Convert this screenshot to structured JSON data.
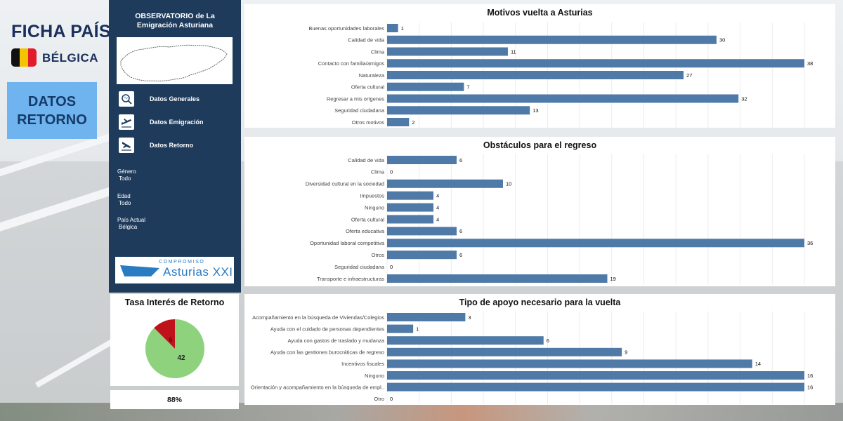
{
  "header": {
    "title": "FICHA PAÍS",
    "country": "BÉLGICA",
    "section_line1": "DATOS",
    "section_line2": "RETORNO"
  },
  "nav": {
    "observatory_line1": "OBSERVATORIO de La",
    "observatory_line2": "Emigración Asturiana",
    "items": [
      {
        "label": "Datos Generales",
        "icon": "search-map-icon"
      },
      {
        "label": "Datos Emigración",
        "icon": "plane-departure-icon"
      },
      {
        "label": "Datos Retorno",
        "icon": "plane-arrival-icon"
      }
    ],
    "filters": [
      {
        "label": "Género",
        "value": "Todo"
      },
      {
        "label": "Edad",
        "value": "Todo"
      },
      {
        "label": "País Actual",
        "value": "Bélgica"
      }
    ],
    "logo_top": "COMPROMISO",
    "logo_main": "Asturias XXI"
  },
  "rate": {
    "title": "Tasa Interés de Retorno",
    "yes_value": 42,
    "no_value": 6,
    "percent_label": "88%",
    "colors": {
      "yes": "#8fd27e",
      "no": "#c0121b"
    }
  },
  "chart_data": [
    {
      "type": "bar",
      "orientation": "horizontal",
      "title": "Motivos vuelta a Asturias",
      "categories": [
        "Buenas oportunidades laborales",
        "Calidad de vida",
        "Clima",
        "Contacto con familia/amigos",
        "Naturaleza",
        "Oferta cultural",
        "Regresar a mis orígenes",
        "Seguridad ciudadana",
        "Otros motivos"
      ],
      "values": [
        1,
        30,
        11,
        38,
        27,
        7,
        32,
        13,
        2
      ],
      "xlim": [
        0,
        38
      ],
      "grid": true,
      "color": "#4f79a7"
    },
    {
      "type": "bar",
      "orientation": "horizontal",
      "title": "Obstáculos para el regreso",
      "categories": [
        "Calidad de vida",
        "Clima",
        "Diversidad cultural en la sociedad",
        "Impuestos",
        "Ninguno",
        "Oferta cultural",
        "Oferta educativa",
        "Oportunidad laboral competitiva",
        "Otros",
        "Seguridad ciudadana",
        "Transporte e infraestructuras"
      ],
      "values": [
        6,
        0,
        10,
        4,
        4,
        4,
        6,
        36,
        6,
        0,
        19
      ],
      "xlim": [
        0,
        36
      ],
      "grid": true,
      "color": "#4f79a7"
    },
    {
      "type": "bar",
      "orientation": "horizontal",
      "title": "Tipo de apoyo necesario para la vuelta",
      "categories": [
        "Acompañamiento en la búsqueda de Viviendas/Colegios",
        "Ayuda con el cuidado de personas dependientes",
        "Ayuda con gastos de traslado y mudanza",
        "Ayuda con las gestiones burocráticas de regreso",
        "Incentivos fiscales",
        "Ninguno",
        "Orientación y acompañamiento en la búsqueda de empl..",
        "Otro"
      ],
      "values": [
        3,
        1,
        6,
        9,
        14,
        16,
        16,
        0
      ],
      "xlim": [
        0,
        16
      ],
      "grid": true,
      "color": "#4f79a7"
    }
  ]
}
